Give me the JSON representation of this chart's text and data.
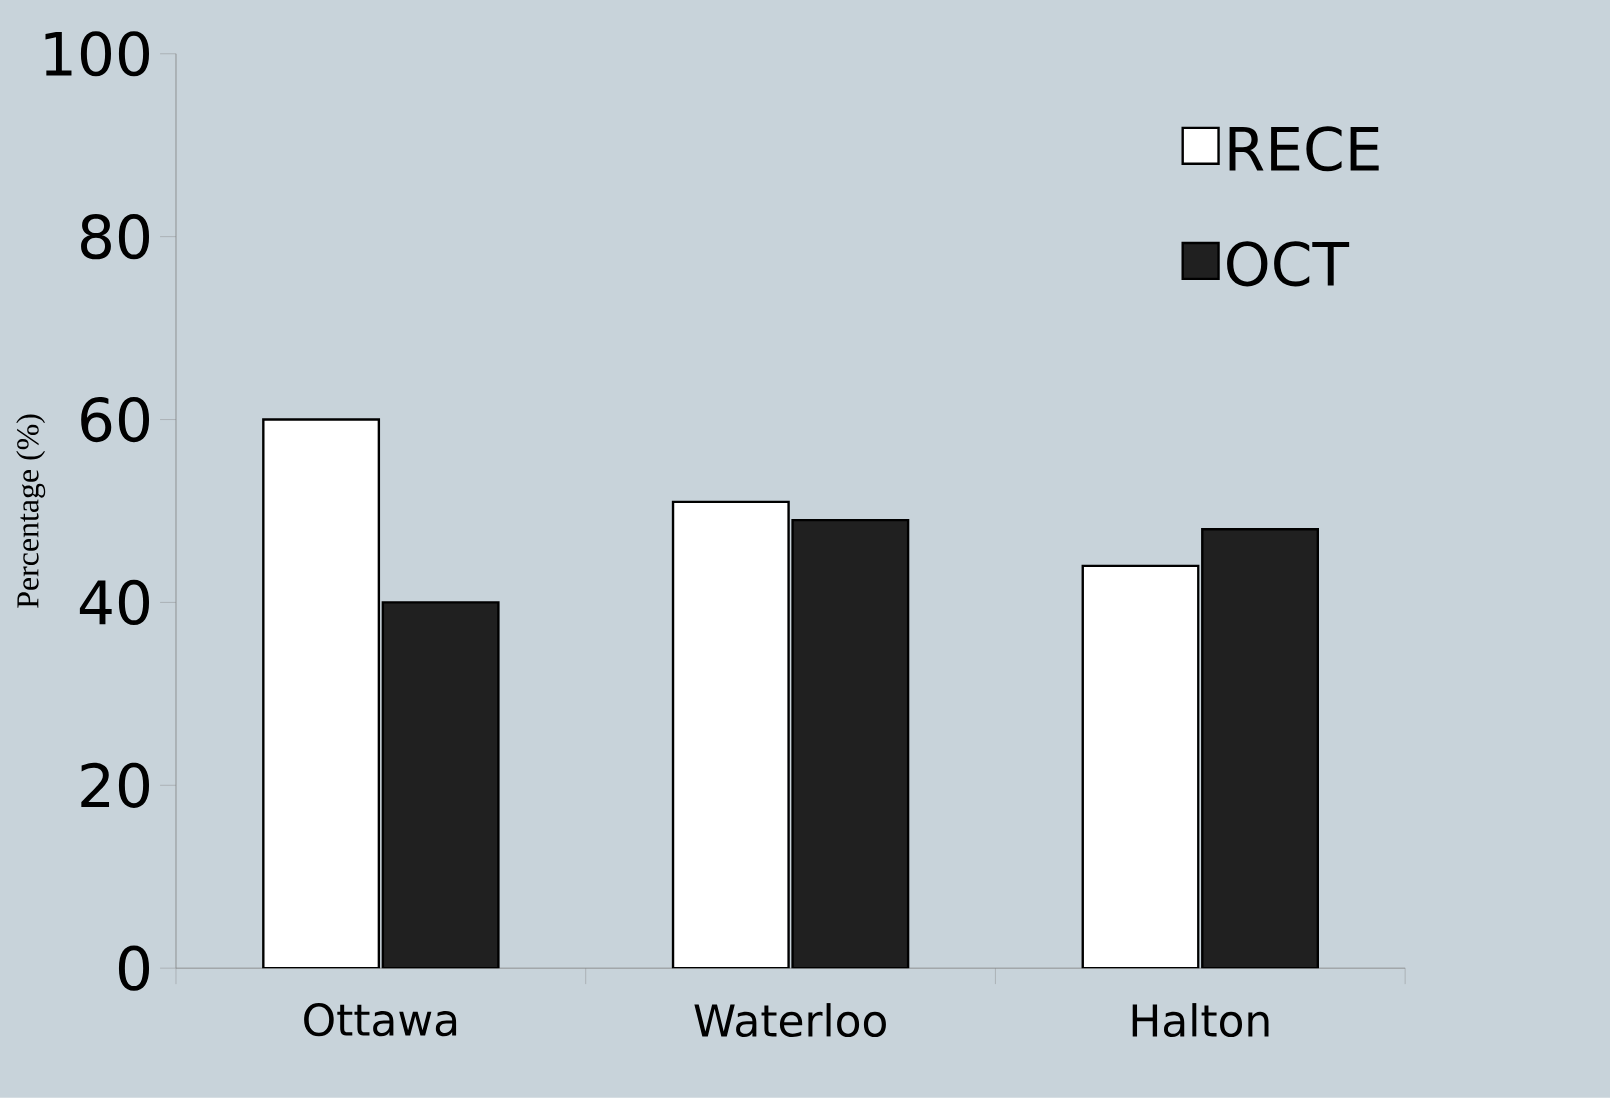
{
  "chart_data": {
    "type": "bar",
    "ylabel": "Percentage (%)",
    "categories": [
      "Ottawa",
      "Waterloo",
      "Halton"
    ],
    "series": [
      {
        "name": "RECE",
        "color": "#ffffff",
        "values": [
          60,
          51,
          44
        ]
      },
      {
        "name": "OCT",
        "color": "#202020",
        "values": [
          40,
          49,
          48
        ]
      }
    ],
    "ylim": [
      0,
      100
    ],
    "yticks": [
      0,
      20,
      40,
      60,
      80,
      100
    ],
    "grid": false,
    "legend": "right"
  }
}
